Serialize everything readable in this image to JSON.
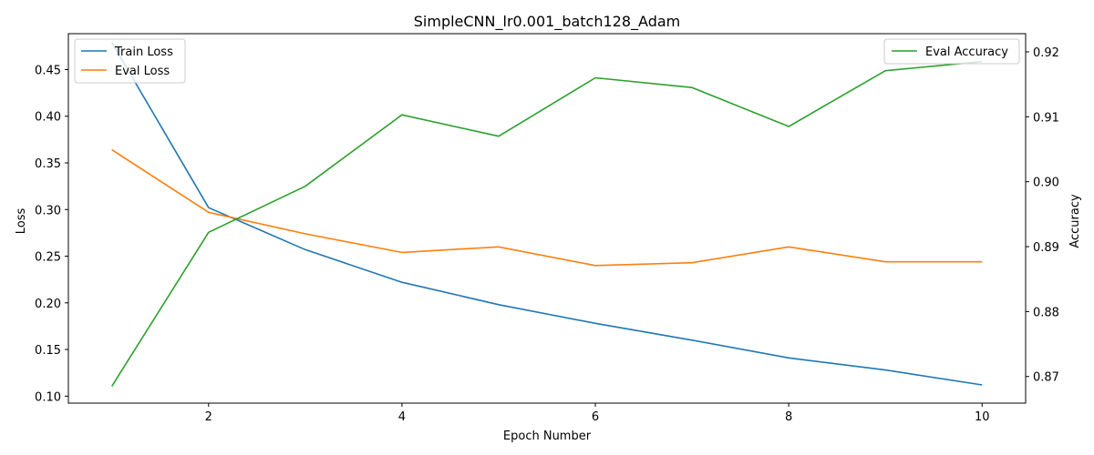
{
  "chart_data": {
    "type": "line",
    "title": "SimpleCNN_lr0.001_batch128_Adam",
    "xlabel": "Epoch Number",
    "ylabel_left": "Loss",
    "ylabel_right": "Accuracy",
    "x": [
      1,
      2,
      3,
      4,
      5,
      6,
      7,
      8,
      9,
      10
    ],
    "xlim": [
      0.55,
      10.45
    ],
    "xticks": [
      2,
      4,
      6,
      8,
      10
    ],
    "ylim_left": [
      0.0925,
      0.4885
    ],
    "yticks_left": [
      0.1,
      0.15,
      0.2,
      0.25,
      0.3,
      0.35,
      0.4,
      0.45
    ],
    "yticks_left_labels": [
      "0.10",
      "0.15",
      "0.20",
      "0.25",
      "0.30",
      "0.35",
      "0.40",
      "0.45"
    ],
    "ylim_right": [
      0.8659,
      0.9228
    ],
    "yticks_right": [
      0.87,
      0.88,
      0.89,
      0.9,
      0.91,
      0.92
    ],
    "yticks_right_labels": [
      "0.87",
      "0.88",
      "0.89",
      "0.90",
      "0.91",
      "0.92"
    ],
    "grid": false,
    "left_series": [
      {
        "name": "Train Loss",
        "color": "#1f77b4",
        "values": [
          0.479,
          0.302,
          0.257,
          0.222,
          0.198,
          0.178,
          0.16,
          0.141,
          0.128,
          0.112
        ]
      },
      {
        "name": "Eval Loss",
        "color": "#ff7f0e",
        "values": [
          0.364,
          0.297,
          0.274,
          0.254,
          0.26,
          0.24,
          0.243,
          0.26,
          0.244,
          0.244
        ]
      }
    ],
    "right_series": [
      {
        "name": "Eval Accuracy",
        "color": "#2ca02c",
        "values": [
          0.8685,
          0.8922,
          0.8993,
          0.9103,
          0.907,
          0.916,
          0.9145,
          0.9085,
          0.9171,
          0.9185
        ]
      }
    ],
    "legend_left_placement": "upper left",
    "legend_right_placement": "upper right"
  }
}
